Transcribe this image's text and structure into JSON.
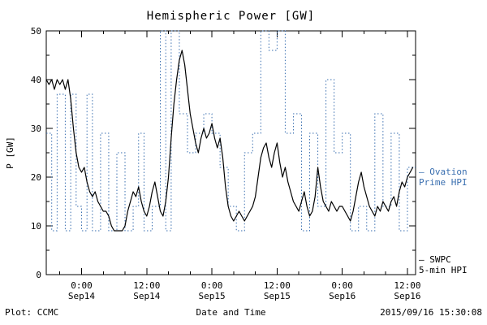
{
  "title": "Hemispheric Power [GW]",
  "footer": {
    "left": "Plot: CCMC",
    "center": "Date and Time",
    "right": "2015/09/16 15:30:08"
  },
  "legend": {
    "ovation": {
      "marker": "—",
      "line1": "Ovation",
      "line2": "Prime HPI",
      "color": "#3a6fb0"
    },
    "swpc": {
      "marker": "—",
      "line1": "SWPC",
      "line2": "5-min HPI",
      "color": "#000000"
    }
  },
  "chart_data": {
    "type": "line",
    "title": "Hemispheric Power [GW]",
    "xlabel": "Date and Time",
    "ylabel": "P [GW]",
    "ylim": [
      0,
      50
    ],
    "xlim": [
      -6.5,
      61.5
    ],
    "x_unit": "hours since 2015-09-14 00:00",
    "grid": false,
    "legend_position": "right-outside",
    "y_ticks": [
      0,
      10,
      20,
      30,
      40,
      50
    ],
    "y_minor_step": 5,
    "x_minor_step": 4,
    "x_ticks": [
      {
        "t": 0,
        "line1": "0:00",
        "line2": "Sep14"
      },
      {
        "t": 12,
        "line1": "12:00",
        "line2": "Sep14"
      },
      {
        "t": 24,
        "line1": "0:00",
        "line2": "Sep15"
      },
      {
        "t": 36,
        "line1": "12:00",
        "line2": "Sep15"
      },
      {
        "t": 48,
        "line1": "0:00",
        "line2": "Sep16"
      },
      {
        "t": 60,
        "line1": "12:00",
        "line2": "Sep16"
      }
    ],
    "series": [
      {
        "name": "SWPC 5-min HPI",
        "style": "solid",
        "color": "#000000",
        "points": [
          [
            -6.5,
            40
          ],
          [
            -6,
            39
          ],
          [
            -5.5,
            40
          ],
          [
            -5,
            38
          ],
          [
            -4.5,
            40
          ],
          [
            -4,
            39
          ],
          [
            -3.5,
            40
          ],
          [
            -3,
            38
          ],
          [
            -2.5,
            40
          ],
          [
            -2,
            36
          ],
          [
            -1.5,
            30
          ],
          [
            -1,
            25
          ],
          [
            -0.5,
            22
          ],
          [
            0,
            21
          ],
          [
            0.5,
            22
          ],
          [
            1,
            19
          ],
          [
            1.5,
            17
          ],
          [
            2,
            16
          ],
          [
            2.5,
            17
          ],
          [
            3,
            15
          ],
          [
            3.5,
            14
          ],
          [
            4,
            13
          ],
          [
            4.5,
            13
          ],
          [
            5,
            12
          ],
          [
            5.5,
            10
          ],
          [
            6,
            9
          ],
          [
            6.5,
            9
          ],
          [
            7,
            9
          ],
          [
            7.5,
            9
          ],
          [
            8,
            10
          ],
          [
            8.5,
            13
          ],
          [
            9,
            15
          ],
          [
            9.5,
            17
          ],
          [
            10,
            16
          ],
          [
            10.5,
            18
          ],
          [
            11,
            15
          ],
          [
            11.5,
            13
          ],
          [
            12,
            12
          ],
          [
            12.5,
            14
          ],
          [
            13,
            17
          ],
          [
            13.5,
            19
          ],
          [
            14,
            16
          ],
          [
            14.5,
            13
          ],
          [
            15,
            12
          ],
          [
            15.5,
            15
          ],
          [
            16,
            20
          ],
          [
            16.5,
            28
          ],
          [
            17,
            35
          ],
          [
            17.5,
            40
          ],
          [
            18,
            44
          ],
          [
            18.5,
            46
          ],
          [
            19,
            43
          ],
          [
            19.5,
            38
          ],
          [
            20,
            33
          ],
          [
            20.5,
            30
          ],
          [
            21,
            27
          ],
          [
            21.5,
            25
          ],
          [
            22,
            28
          ],
          [
            22.5,
            30
          ],
          [
            23,
            28
          ],
          [
            23.5,
            29
          ],
          [
            24,
            31
          ],
          [
            24.5,
            28
          ],
          [
            25,
            26
          ],
          [
            25.5,
            28
          ],
          [
            26,
            24
          ],
          [
            26.5,
            18
          ],
          [
            27,
            14
          ],
          [
            27.5,
            12
          ],
          [
            28,
            11
          ],
          [
            28.5,
            12
          ],
          [
            29,
            13
          ],
          [
            29.5,
            12
          ],
          [
            30,
            11
          ],
          [
            30.5,
            12
          ],
          [
            31,
            13
          ],
          [
            31.5,
            14
          ],
          [
            32,
            16
          ],
          [
            32.5,
            20
          ],
          [
            33,
            24
          ],
          [
            33.5,
            26
          ],
          [
            34,
            27
          ],
          [
            34.5,
            24
          ],
          [
            35,
            22
          ],
          [
            35.5,
            25
          ],
          [
            36,
            27
          ],
          [
            36.5,
            23
          ],
          [
            37,
            20
          ],
          [
            37.5,
            22
          ],
          [
            38,
            19
          ],
          [
            38.5,
            17
          ],
          [
            39,
            15
          ],
          [
            39.5,
            14
          ],
          [
            40,
            13
          ],
          [
            40.5,
            15
          ],
          [
            41,
            17
          ],
          [
            41.5,
            14
          ],
          [
            42,
            12
          ],
          [
            42.5,
            13
          ],
          [
            43,
            16
          ],
          [
            43.5,
            22
          ],
          [
            44,
            18
          ],
          [
            44.5,
            15
          ],
          [
            45,
            14
          ],
          [
            45.5,
            13
          ],
          [
            46,
            15
          ],
          [
            46.5,
            14
          ],
          [
            47,
            13
          ],
          [
            47.5,
            14
          ],
          [
            48,
            14
          ],
          [
            48.5,
            13
          ],
          [
            49,
            12
          ],
          [
            49.5,
            11
          ],
          [
            50,
            13
          ],
          [
            50.5,
            16
          ],
          [
            51,
            19
          ],
          [
            51.5,
            21
          ],
          [
            52,
            18
          ],
          [
            52.5,
            16
          ],
          [
            53,
            14
          ],
          [
            53.5,
            13
          ],
          [
            54,
            12
          ],
          [
            54.5,
            14
          ],
          [
            55,
            13
          ],
          [
            55.5,
            15
          ],
          [
            56,
            14
          ],
          [
            56.5,
            13
          ],
          [
            57,
            15
          ],
          [
            57.5,
            16
          ],
          [
            58,
            14
          ],
          [
            58.5,
            17
          ],
          [
            59,
            19
          ],
          [
            59.5,
            18
          ],
          [
            60,
            20
          ],
          [
            60.5,
            21
          ],
          [
            61,
            22
          ]
        ]
      },
      {
        "name": "Ovation Prime HPI",
        "style": "dotted-step",
        "color": "#3a6fb0",
        "steps": [
          [
            -6.5,
            29
          ],
          [
            -5.5,
            9
          ],
          [
            -4.5,
            37
          ],
          [
            -3,
            9
          ],
          [
            -2,
            37
          ],
          [
            -1,
            14
          ],
          [
            0,
            9
          ],
          [
            1,
            37
          ],
          [
            2,
            9
          ],
          [
            3.5,
            29
          ],
          [
            5,
            9
          ],
          [
            6.5,
            25
          ],
          [
            8,
            9
          ],
          [
            9.5,
            14
          ],
          [
            10.5,
            29
          ],
          [
            11.5,
            9
          ],
          [
            13,
            14
          ],
          [
            14.5,
            50
          ],
          [
            15.5,
            9
          ],
          [
            16.5,
            50
          ],
          [
            18,
            33
          ],
          [
            19.5,
            25
          ],
          [
            21,
            29
          ],
          [
            22.5,
            33
          ],
          [
            24,
            29
          ],
          [
            25.5,
            22
          ],
          [
            27,
            14
          ],
          [
            28.5,
            9
          ],
          [
            30,
            25
          ],
          [
            31.5,
            29
          ],
          [
            33,
            50
          ],
          [
            34.5,
            46
          ],
          [
            36,
            50
          ],
          [
            37.5,
            29
          ],
          [
            39,
            33
          ],
          [
            40.5,
            9
          ],
          [
            42,
            29
          ],
          [
            43.5,
            14
          ],
          [
            45,
            40
          ],
          [
            46.5,
            25
          ],
          [
            48,
            29
          ],
          [
            49.5,
            9
          ],
          [
            51,
            14
          ],
          [
            52.5,
            9
          ],
          [
            54,
            33
          ],
          [
            55.5,
            14
          ],
          [
            57,
            29
          ],
          [
            58.5,
            9
          ],
          [
            60,
            22
          ],
          [
            61.5,
            22
          ]
        ]
      }
    ]
  }
}
